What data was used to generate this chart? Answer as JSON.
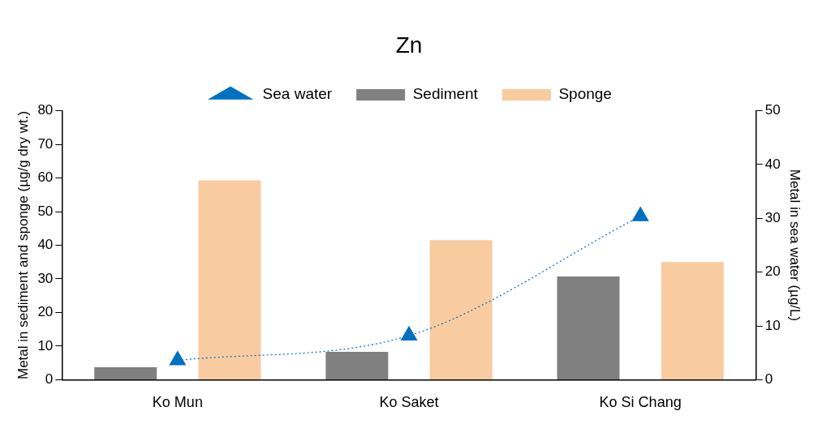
{
  "chart_data": {
    "type": "bar",
    "title": "Zn",
    "categories": [
      "Ko Mun",
      "Ko Saket",
      "Ko Si Chang"
    ],
    "series": [
      {
        "name": "Sediment",
        "color": "#808080",
        "values": [
          3.7,
          8.3,
          30.7
        ]
      },
      {
        "name": "Sponge",
        "color": "#f8cba0",
        "values": [
          59.3,
          41.5,
          35.0
        ]
      },
      {
        "name": "Sea water",
        "type": "line",
        "axis": "y2",
        "color": "#0070c0",
        "values": [
          3.6,
          8.2,
          30.4
        ],
        "marker": "triangle",
        "line_style": "dotted"
      }
    ],
    "ylabel": "Metal in sediment and sponge (µg/g dry wt.)",
    "y2label": "Metal in sea water (µg/L)",
    "ylim": [
      0,
      80
    ],
    "yticks": [
      0,
      10,
      20,
      30,
      40,
      50,
      60,
      70,
      80
    ],
    "y2lim": [
      0,
      50
    ],
    "y2ticks": [
      0,
      10,
      20,
      30,
      40,
      50
    ],
    "grid": false,
    "legend": "top"
  }
}
